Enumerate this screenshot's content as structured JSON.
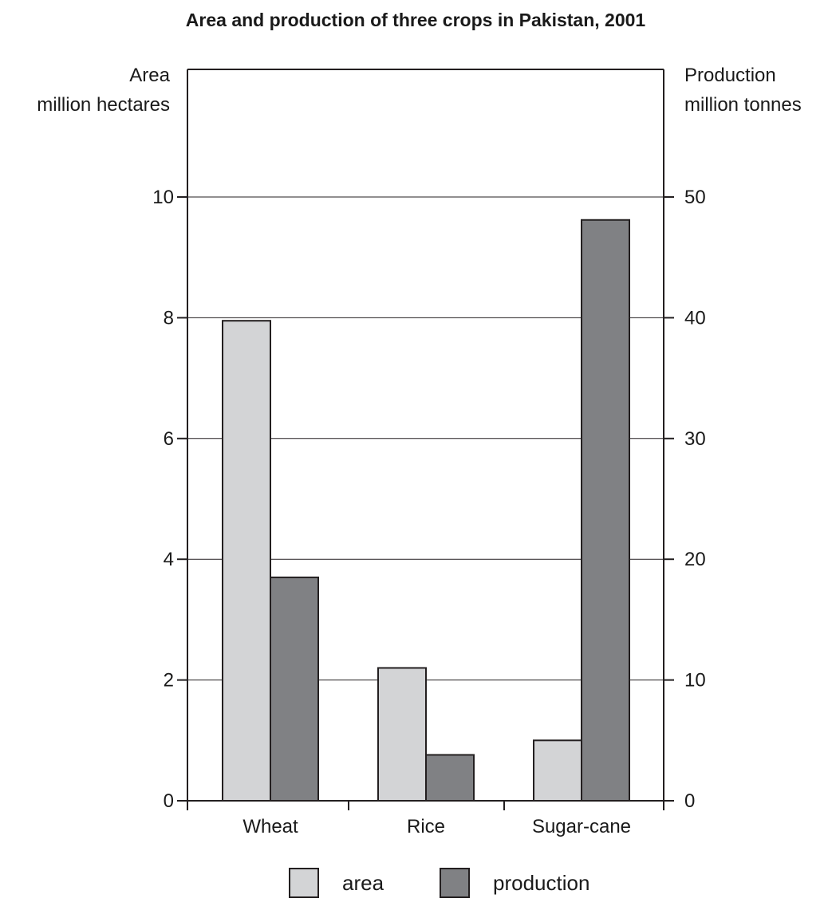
{
  "chart_data": {
    "type": "bar",
    "title": "Area and production of three crops in Pakistan, 2001",
    "categories": [
      "Wheat",
      "Rice",
      "Sugar-cane"
    ],
    "series": [
      {
        "name": "area",
        "axis": "left",
        "values": [
          7.95,
          2.2,
          1.0
        ]
      },
      {
        "name": "production",
        "axis": "right",
        "values": [
          18.5,
          3.8,
          48.1
        ]
      }
    ],
    "y_left": {
      "label_line1": "Area",
      "label_line2": "million hectares",
      "ylim": [
        0,
        12
      ],
      "ticks": [
        0,
        2,
        4,
        6,
        8,
        10
      ]
    },
    "y_right": {
      "label_line1": "Production",
      "label_line2": "million tonnes",
      "ylim": [
        0,
        60
      ],
      "ticks": [
        0,
        10,
        20,
        30,
        40,
        50
      ]
    },
    "grid": true,
    "legend": {
      "placement": "bottom",
      "items": [
        {
          "label": "area",
          "color": "#d3d4d6"
        },
        {
          "label": "production",
          "color": "#808184"
        }
      ]
    },
    "colors": {
      "area": "#d3d4d6",
      "production": "#808184",
      "stroke": "#231f20",
      "grid": "#231f20"
    }
  }
}
